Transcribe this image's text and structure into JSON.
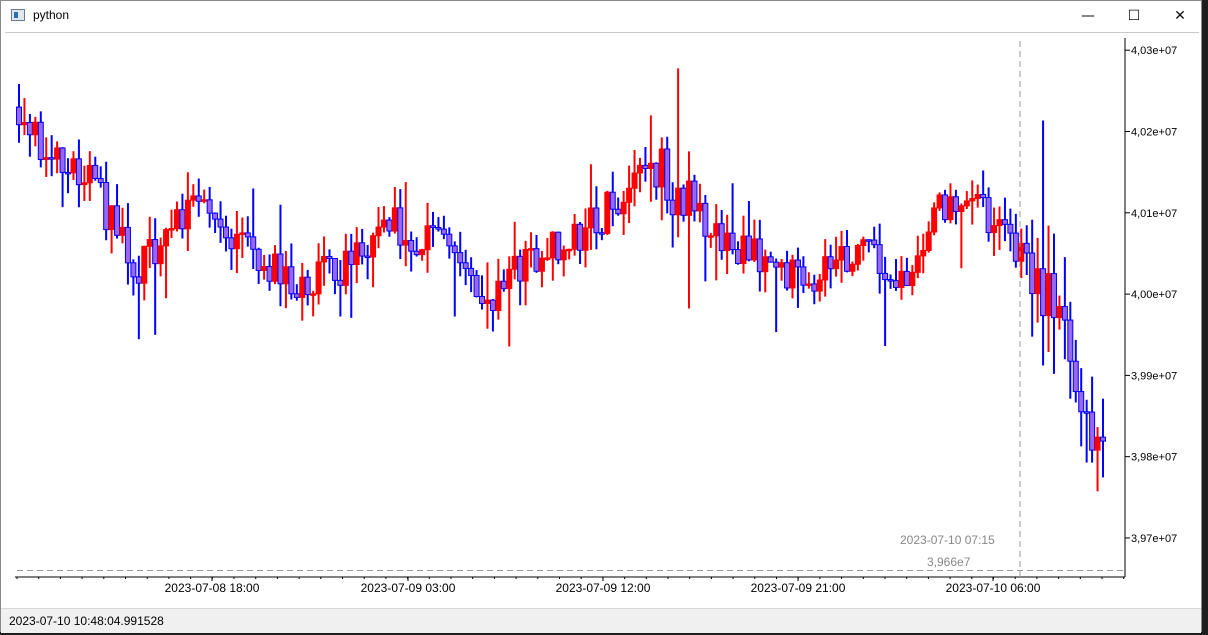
{
  "window": {
    "title": "python",
    "icon": "python-app-icon",
    "controls": {
      "minimize": "—",
      "maximize": "☐",
      "close": "✕"
    }
  },
  "status_bar": {
    "text": "2023-07-10 10:48:04.991528"
  },
  "crosshair": {
    "time_label": "2023-07-10 07:15",
    "price_label": "3,966e7"
  },
  "colors": {
    "up": "#ff0000",
    "down": "#0000ff",
    "body_fill": "#9966ee",
    "axis": "#000000",
    "crosshair": "#999999"
  },
  "chart_data": {
    "type": "candlestick",
    "title": "",
    "xlabel": "",
    "ylabel": "",
    "x_ticks": [
      "2023-07-08 18:00",
      "2023-07-09 03:00",
      "2023-07-09 12:00",
      "2023-07-09 21:00",
      "2023-07-10 06:00"
    ],
    "y_ticks": [
      "4,03e+07",
      "4,02e+07",
      "4,01e+07",
      "4,00e+07",
      "3,99e+07",
      "3,98e+07",
      "3,97e+07"
    ],
    "y_tick_values": [
      40300000,
      40200000,
      40100000,
      40000000,
      39900000,
      39800000,
      39700000
    ],
    "ylim": [
      39652000,
      40315000
    ],
    "crosshair_value": 39660000,
    "grid": false,
    "legend": "none",
    "candle_count": 200
  }
}
